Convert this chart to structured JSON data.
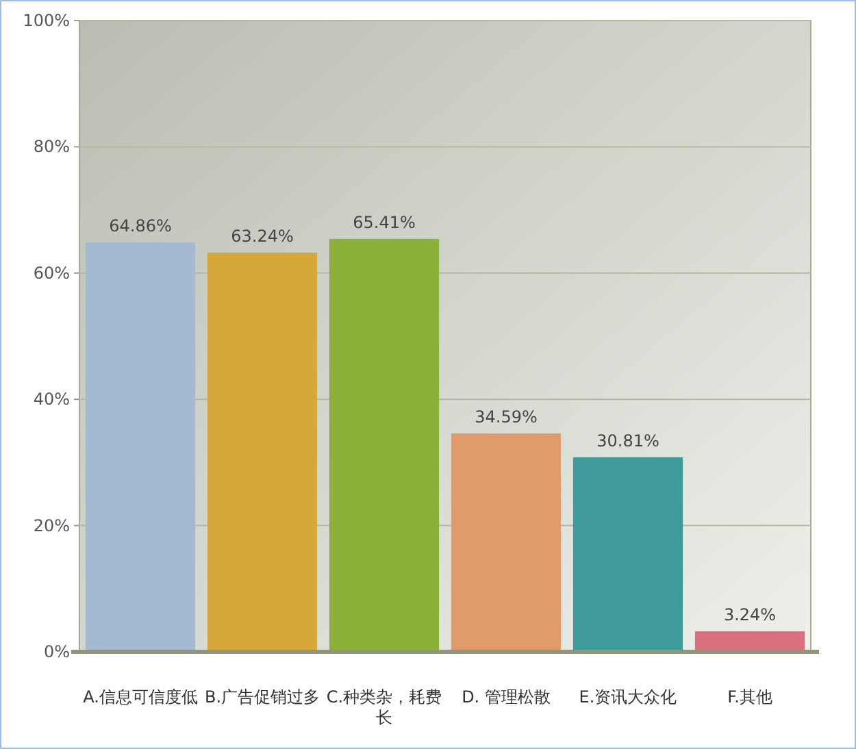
{
  "chart_data": {
    "type": "bar",
    "categories": [
      "A.信息可信度低",
      "B.广告促销过多",
      "C.种类杂，耗费长",
      "D. 管理松散",
      "E.资讯大众化",
      "F.其他"
    ],
    "values": [
      64.86,
      63.24,
      65.41,
      34.59,
      30.81,
      3.24
    ],
    "colors": [
      "#a3bad2",
      "#d6a83a",
      "#8cb03a",
      "#e09a6c",
      "#3f9a9c",
      "#d9707e"
    ],
    "value_labels": [
      "64.86%",
      "63.24%",
      "65.41%",
      "34.59%",
      "30.81%",
      "3.24%"
    ],
    "ylim": [
      0,
      100
    ],
    "yticks": [
      {
        "value": 0,
        "label": "0%"
      },
      {
        "value": 20,
        "label": "20%"
      },
      {
        "value": 40,
        "label": "40%"
      },
      {
        "value": 60,
        "label": "60%"
      },
      {
        "value": 80,
        "label": "80%"
      },
      {
        "value": 100,
        "label": "100%"
      }
    ],
    "grid": "y"
  }
}
